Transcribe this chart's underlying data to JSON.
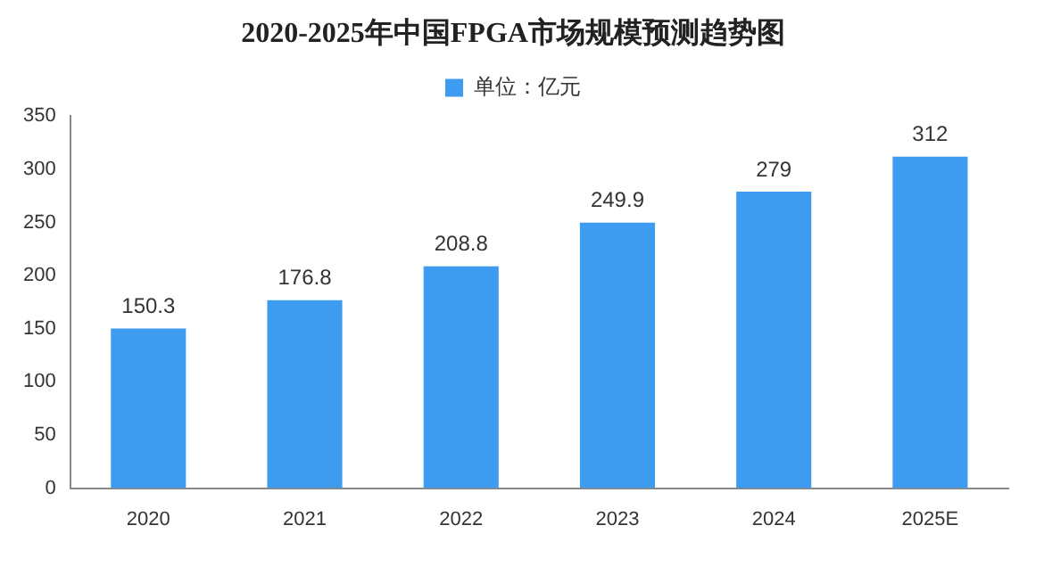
{
  "chart_data": {
    "type": "bar",
    "title": "2020-2025年中国FPGA市场规模预测趋势图",
    "categories": [
      "2020",
      "2021",
      "2022",
      "2023",
      "2024",
      "2025E"
    ],
    "series": [
      {
        "name": "单位：亿元",
        "color": "#3d9cf0",
        "values": [
          150.3,
          176.8,
          208.8,
          249.9,
          279,
          312
        ]
      }
    ],
    "ylim": [
      0,
      350
    ],
    "yticks": [
      0,
      50,
      100,
      150,
      200,
      250,
      300,
      350
    ],
    "grid": false,
    "legend": "top",
    "data_labels": true
  }
}
